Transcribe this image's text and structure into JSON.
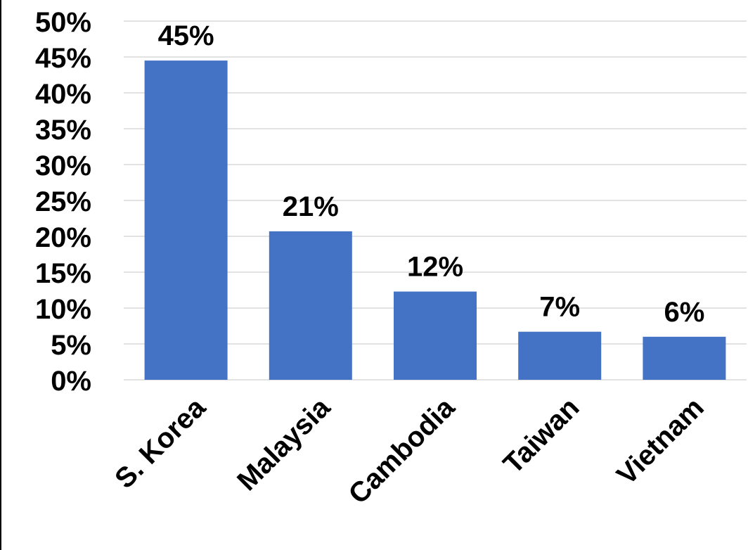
{
  "chart_data": {
    "type": "bar",
    "title": "",
    "xlabel": "",
    "ylabel": "",
    "categories": [
      "S. Korea",
      "Malaysia",
      "Cambodia",
      "Taiwan",
      "Vietnam"
    ],
    "values": [
      0.445,
      0.207,
      0.123,
      0.067,
      0.06
    ],
    "data_labels": [
      "45%",
      "21%",
      "12%",
      "7%",
      "6%"
    ],
    "ylim": [
      0,
      0.5
    ],
    "y_ticks": [
      0,
      0.05,
      0.1,
      0.15,
      0.2,
      0.25,
      0.3,
      0.35,
      0.4,
      0.45,
      0.5
    ],
    "y_tick_labels": [
      "0%",
      "5%",
      "10%",
      "15%",
      "20%",
      "25%",
      "30%",
      "35%",
      "40%",
      "45%",
      "50%"
    ],
    "grid": true,
    "legend": "none",
    "bar_color": "#4472c4",
    "gridline_color": "#d9d9d9"
  }
}
